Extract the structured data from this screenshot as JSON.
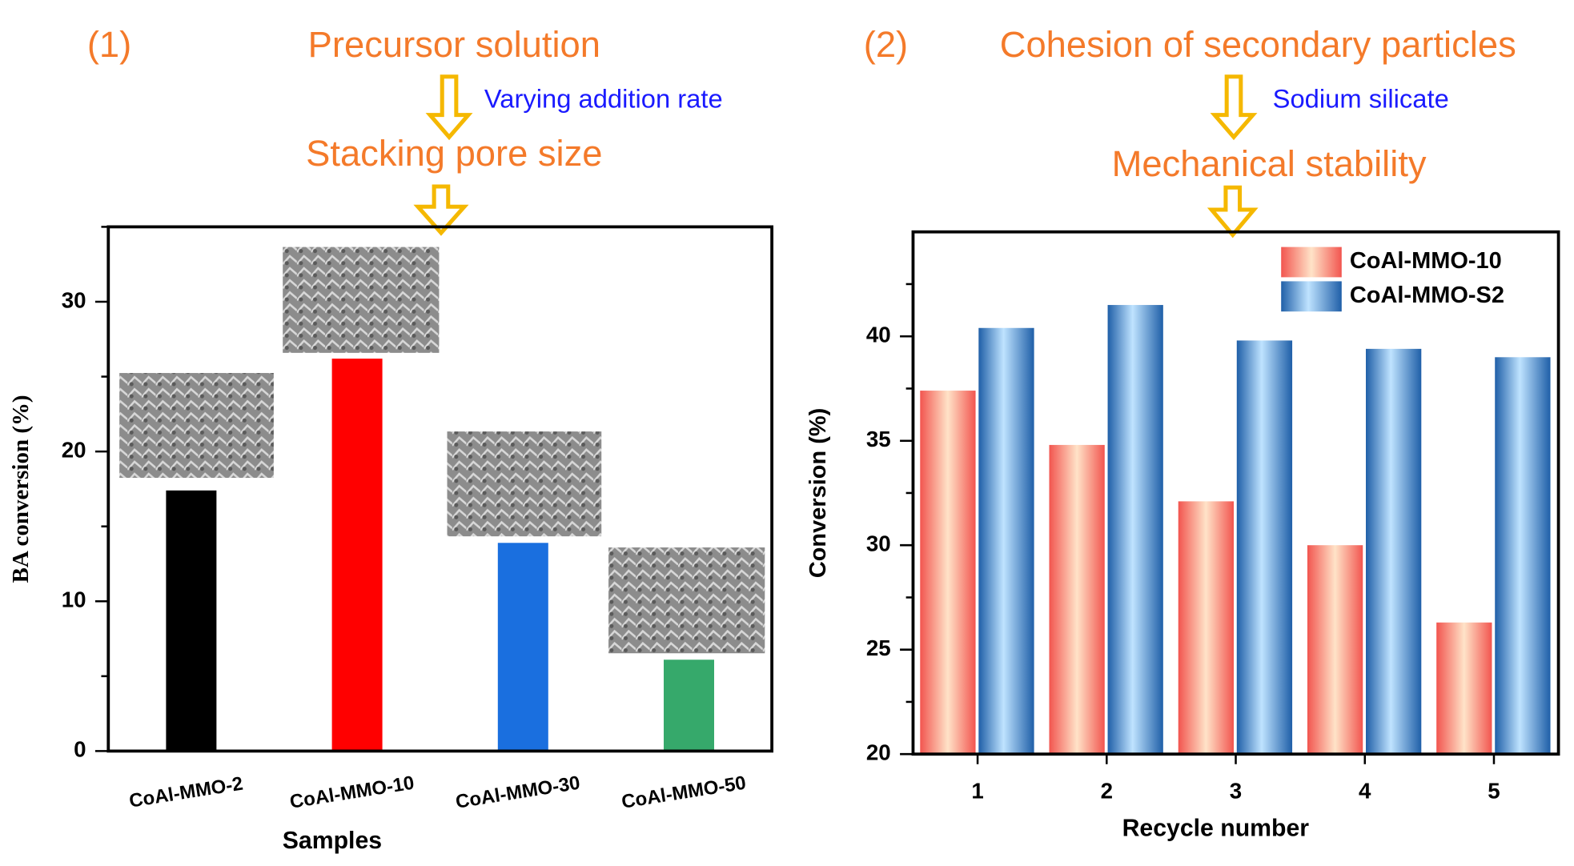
{
  "chart_data": [
    {
      "type": "bar",
      "x_label": "Samples",
      "y_label": "BA conversion (%)",
      "categories": [
        "CoAl-MMO-2",
        "CoAl-MMO-10",
        "CoAl-MMO-30",
        "CoAl-MMO-50"
      ],
      "values": [
        17.4,
        26.2,
        13.9,
        6.1
      ],
      "colors": [
        "#000000",
        "#ff0000",
        "#1a6fdf",
        "#36a96b"
      ],
      "ylim": [
        0,
        35
      ],
      "yticks": [
        0,
        10,
        20,
        30
      ],
      "annotations": [
        {
          "text": "(1)",
          "color": "#f47a2a"
        },
        {
          "text": "Precursor solution",
          "color": "#f47a2a"
        },
        {
          "text": "Varying addition rate",
          "color": "#1a1aff"
        },
        {
          "text": "Stacking pore size",
          "color": "#f47a2a"
        }
      ]
    },
    {
      "type": "bar",
      "x_label": "Recycle number",
      "y_label": "Conversion (%)",
      "categories": [
        "1",
        "2",
        "3",
        "4",
        "5"
      ],
      "series": [
        {
          "name": "CoAl-MMO-10",
          "color": "#f2554f",
          "values": [
            37.4,
            34.8,
            32.1,
            30.0,
            26.3
          ]
        },
        {
          "name": "CoAl-MMO-S2",
          "color": "#2a6fb5",
          "values": [
            40.4,
            41.5,
            39.8,
            39.4,
            39.0
          ]
        }
      ],
      "ylim": [
        20,
        45
      ],
      "yticks": [
        20,
        25,
        30,
        35,
        40
      ],
      "legend": "upper right",
      "annotations": [
        {
          "text": "(2)",
          "color": "#f47a2a"
        },
        {
          "text": "Cohesion of secondary particles",
          "color": "#f47a2a"
        },
        {
          "text": "Sodium silicate",
          "color": "#1a1aff"
        },
        {
          "text": "Mechanical stability",
          "color": "#f47a2a"
        }
      ]
    }
  ]
}
